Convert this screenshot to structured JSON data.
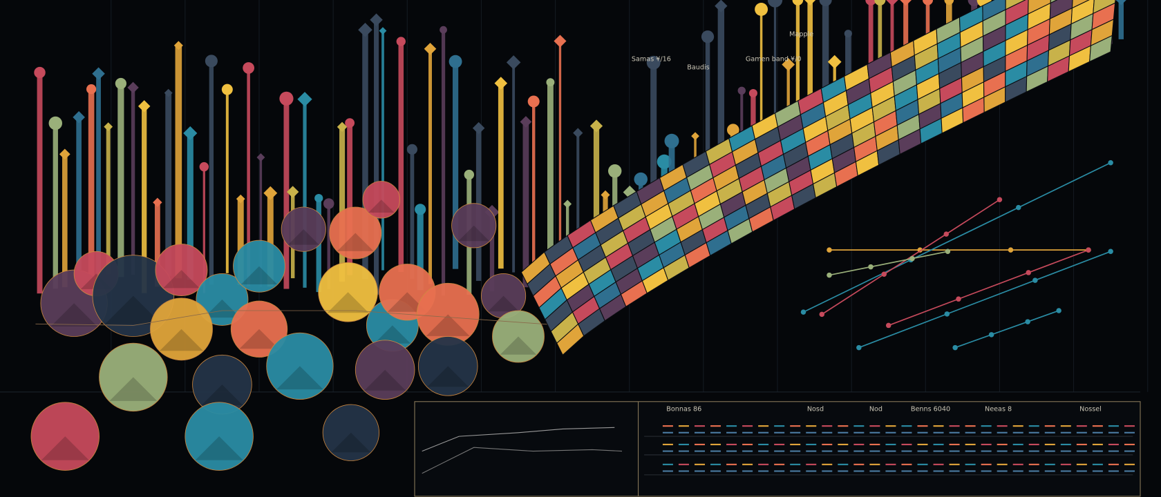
{
  "annotations": [
    "Samas ¥/16",
    "Baudis",
    "Gamen band ¥/0",
    "Mapple"
  ],
  "panel": {
    "headers": [
      "Bonnas 86",
      "Nosd",
      "Nod",
      "Benns 6040",
      "Neeas 8",
      "Nossel"
    ]
  }
}
